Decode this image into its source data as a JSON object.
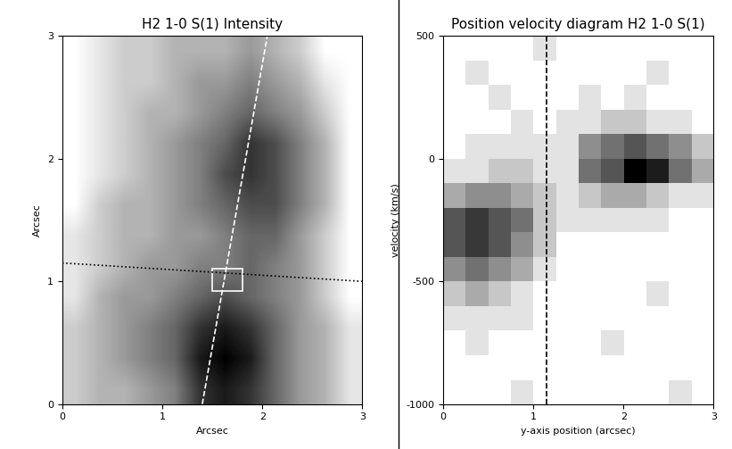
{
  "chart_data": [
    {
      "type": "heatmap",
      "title": "H2 1-0 S(1) Intensity",
      "x_label": "Arcsec",
      "y_label": "Arcsec",
      "xlim": [
        0,
        3
      ],
      "ylim": [
        0,
        3
      ],
      "xticks": [
        0,
        1,
        2,
        3
      ],
      "yticks": [
        0,
        1,
        2,
        3
      ],
      "color": "gray_r",
      "cells": [
        [
          2,
          3,
          3,
          4,
          5,
          8,
          9,
          8,
          6,
          4,
          3,
          1
        ],
        [
          2,
          3,
          4,
          5,
          6,
          9,
          10,
          9,
          6,
          4,
          3,
          1
        ],
        [
          2,
          3,
          4,
          5,
          6,
          8,
          9,
          8,
          6,
          4,
          3,
          1
        ],
        [
          1,
          3,
          4,
          4,
          5,
          6,
          7,
          6,
          5,
          4,
          2,
          0
        ],
        [
          1,
          2,
          3,
          4,
          4,
          5,
          5,
          6,
          5,
          4,
          2,
          0
        ],
        [
          1,
          2,
          3,
          3,
          4,
          4,
          5,
          6,
          6,
          4,
          2,
          0
        ],
        [
          0,
          2,
          3,
          3,
          4,
          5,
          6,
          7,
          7,
          5,
          3,
          0
        ],
        [
          0,
          1,
          2,
          3,
          4,
          5,
          7,
          8,
          7,
          5,
          3,
          0
        ],
        [
          0,
          1,
          2,
          3,
          4,
          5,
          6,
          8,
          7,
          5,
          3,
          0
        ],
        [
          0,
          1,
          2,
          3,
          3,
          4,
          5,
          6,
          5,
          4,
          2,
          0
        ],
        [
          0,
          1,
          2,
          2,
          3,
          4,
          4,
          5,
          4,
          3,
          1,
          0
        ],
        [
          0,
          1,
          2,
          2,
          3,
          3,
          3,
          4,
          3,
          2,
          0,
          0
        ]
      ],
      "lines": [
        {
          "x": [
            1.4,
            2.05
          ],
          "y": [
            0,
            3
          ],
          "color": "white",
          "line_style": "dashed"
        },
        {
          "x": [
            0,
            3
          ],
          "y": [
            1.15,
            1.0
          ],
          "color": "black",
          "line_style": "dotted"
        }
      ],
      "box": {
        "x": [
          1.5,
          1.8
        ],
        "y": [
          0.92,
          1.1
        ],
        "color": "white"
      }
    },
    {
      "type": "heatmap",
      "title": "Position velocity diagram H2 1-0 S(1)",
      "x_label": "y-axis position (arcsec)",
      "y_label": "velocity (km/s)",
      "xlim": [
        0,
        3
      ],
      "ylim": [
        -1000,
        500
      ],
      "xticks": [
        0,
        1,
        2,
        3
      ],
      "yticks": [
        -1000,
        -500,
        0,
        500
      ],
      "color": "gray_r",
      "cells": [
        [
          0,
          0,
          0,
          1,
          0,
          0,
          0,
          0,
          0,
          0,
          1,
          0
        ],
        [
          0,
          0,
          0,
          0,
          0,
          0,
          0,
          0,
          0,
          0,
          0,
          0
        ],
        [
          0,
          1,
          0,
          0,
          0,
          0,
          0,
          1,
          0,
          0,
          0,
          0
        ],
        [
          1,
          1,
          1,
          1,
          0,
          0,
          0,
          0,
          0,
          0,
          0,
          0
        ],
        [
          2,
          3,
          2,
          1,
          0,
          0,
          0,
          0,
          0,
          1,
          0,
          0
        ],
        [
          4,
          5,
          4,
          3,
          1,
          0,
          0,
          0,
          0,
          0,
          0,
          0
        ],
        [
          6,
          7,
          6,
          4,
          2,
          0,
          0,
          0,
          0,
          0,
          0,
          0
        ],
        [
          6,
          7,
          6,
          5,
          2,
          1,
          1,
          1,
          1,
          1,
          0,
          0
        ],
        [
          3,
          4,
          4,
          3,
          2,
          1,
          2,
          3,
          3,
          2,
          1,
          1
        ],
        [
          1,
          1,
          2,
          2,
          1,
          1,
          5,
          6,
          9,
          8,
          5,
          3
        ],
        [
          0,
          1,
          1,
          1,
          1,
          1,
          4,
          5,
          6,
          5,
          4,
          2
        ],
        [
          0,
          0,
          0,
          1,
          0,
          1,
          1,
          2,
          2,
          1,
          1,
          0
        ],
        [
          0,
          0,
          1,
          0,
          0,
          0,
          1,
          0,
          1,
          0,
          0,
          0
        ],
        [
          0,
          1,
          0,
          0,
          0,
          0,
          0,
          0,
          0,
          1,
          0,
          0
        ],
        [
          0,
          0,
          0,
          0,
          1,
          0,
          0,
          0,
          0,
          0,
          0,
          0
        ]
      ],
      "lines": [
        {
          "x": [
            1.15,
            1.15
          ],
          "y": [
            -1000,
            500
          ],
          "color": "black",
          "line_style": "dashed"
        }
      ]
    }
  ]
}
